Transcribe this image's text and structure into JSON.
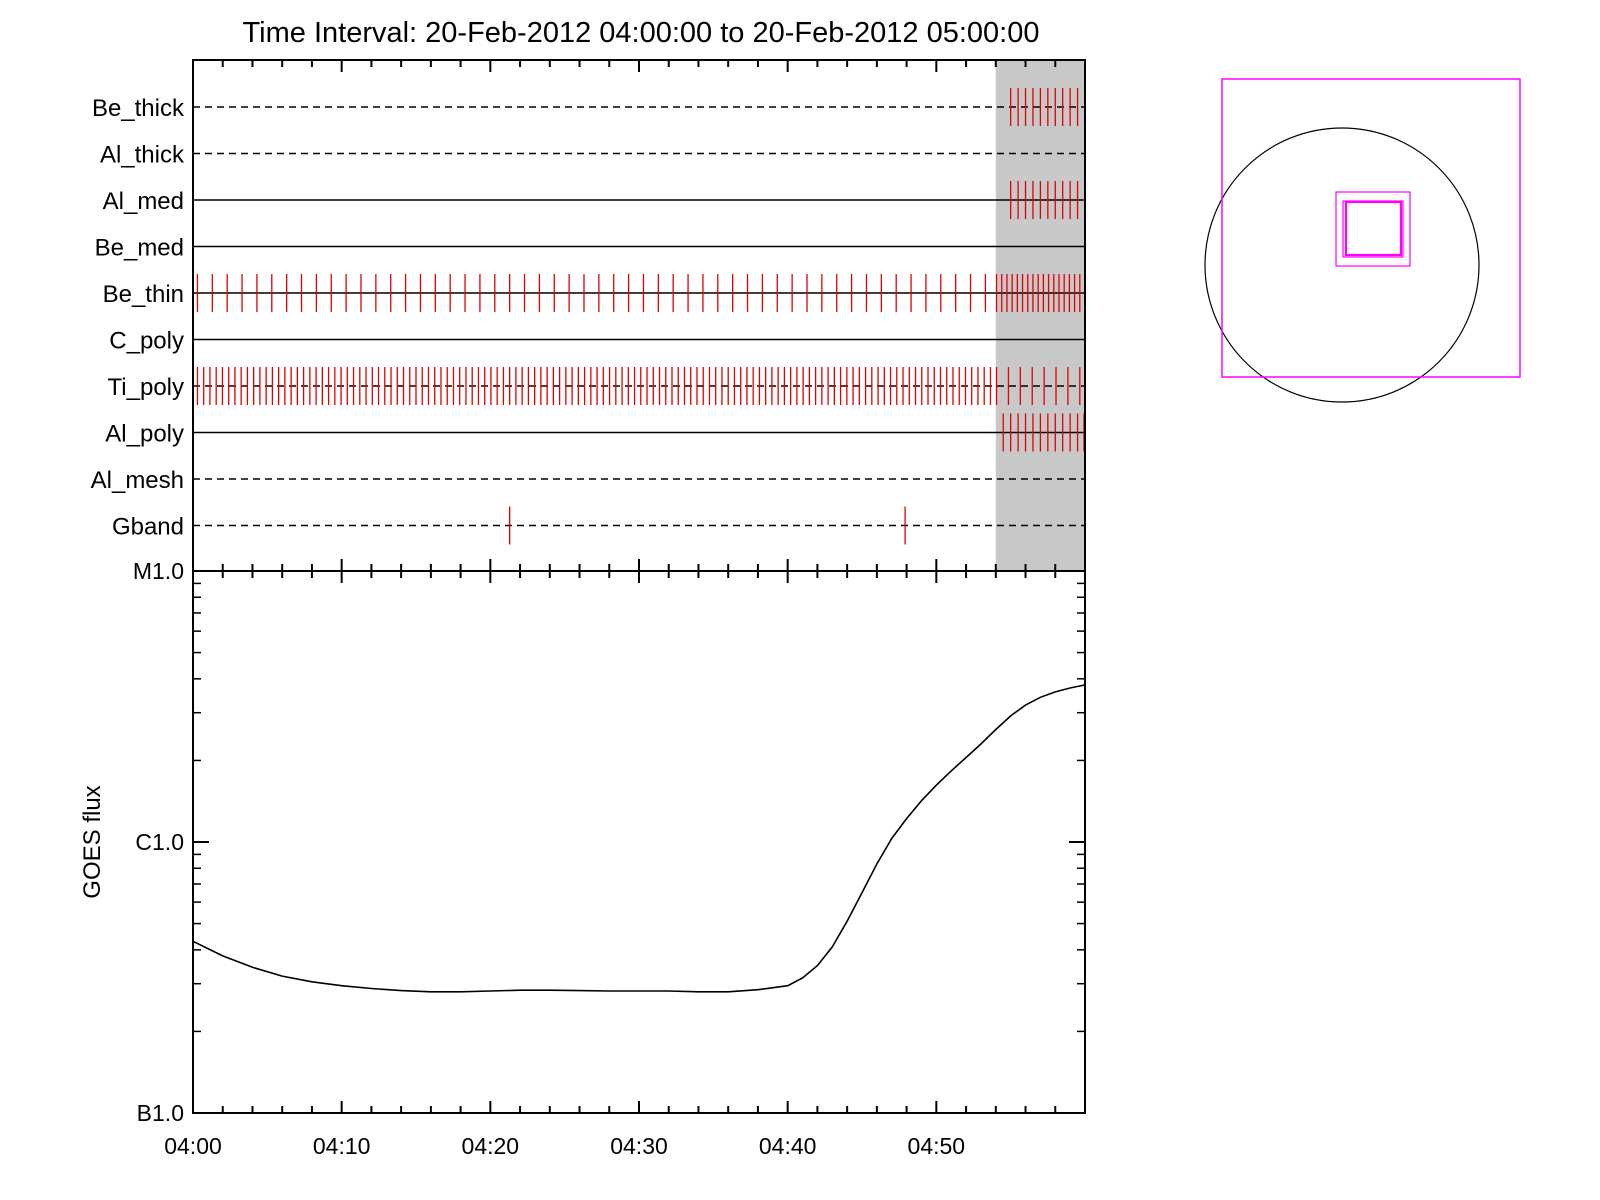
{
  "title": "Time Interval: 20-Feb-2012 04:00:00 to 20-Feb-2012 05:00:00",
  "colors": {
    "event_tick": "#e00000",
    "shade": "#c8c8c8",
    "fov": "#ff00ff",
    "line": "#000000"
  },
  "chart_data": [
    {
      "type": "timeline",
      "x_range": [
        "04:00",
        "05:00"
      ],
      "shaded_interval": [
        "04:54",
        "05:00"
      ],
      "rows": [
        {
          "name": "Be_thick",
          "line": "dashed",
          "ticks": [
            "04:55",
            "04:55.5",
            "04:56",
            "04:56.5",
            "04:57",
            "04:57.5",
            "04:58",
            "04:58.5",
            "04:59",
            "04:59.5"
          ]
        },
        {
          "name": "Al_thick",
          "line": "dashed",
          "ticks": []
        },
        {
          "name": "Al_med",
          "line": "solid",
          "ticks": [
            "04:55",
            "04:55.5",
            "04:56",
            "04:56.5",
            "04:57",
            "04:57.5",
            "04:58",
            "04:58.5",
            "04:59",
            "04:59.5"
          ]
        },
        {
          "name": "Be_med",
          "line": "solid",
          "ticks": []
        },
        {
          "name": "Be_thin",
          "line": "solid",
          "tick_spacing_min": 1.0,
          "tick_spacing_min_shaded": 0.35
        },
        {
          "name": "C_poly",
          "line": "solid",
          "ticks": []
        },
        {
          "name": "Ti_poly",
          "line": "dashed",
          "tick_spacing_min": 0.42,
          "tick_spacing_min_shaded": 0.8
        },
        {
          "name": "Al_poly",
          "line": "solid",
          "ticks": [
            "04:54.5",
            "04:55",
            "04:55.5",
            "04:56",
            "04:56.5",
            "04:57",
            "04:57.5",
            "04:58",
            "04:58.5",
            "04:59",
            "04:59.5",
            "05:00"
          ]
        },
        {
          "name": "Al_mesh",
          "line": "dashed",
          "ticks": []
        },
        {
          "name": "Gband",
          "line": "dashed",
          "ticks": [
            "04:21.3",
            "04:47.9"
          ]
        }
      ]
    },
    {
      "type": "line",
      "ylabel": "GOES flux",
      "yscale": "log",
      "ylim": [
        1e-07,
        1e-05
      ],
      "yticks": [
        {
          "value": 1e-07,
          "label": "B1.0"
        },
        {
          "value": 1e-06,
          "label": "C1.0"
        },
        {
          "value": 1e-05,
          "label": "M1.0"
        }
      ],
      "xticks": [
        "04:00",
        "04:10",
        "04:20",
        "04:30",
        "04:40",
        "04:50"
      ],
      "xlim": [
        "04:00",
        "05:00"
      ],
      "series": [
        {
          "x": [
            "04:00",
            "04:02",
            "04:04",
            "04:06",
            "04:08",
            "04:10",
            "04:12",
            "04:14",
            "04:16",
            "04:18",
            "04:20",
            "04:22",
            "04:24",
            "04:26",
            "04:28",
            "04:30",
            "04:32",
            "04:34",
            "04:36",
            "04:38",
            "04:40",
            "04:41",
            "04:42",
            "04:43",
            "04:44",
            "04:45",
            "04:46",
            "04:47",
            "04:48",
            "04:49",
            "04:50",
            "04:51",
            "04:52",
            "04:53",
            "04:54",
            "04:55",
            "04:56",
            "04:57",
            "04:58",
            "04:59",
            "05:00"
          ],
          "y": [
            4.3e-07,
            3.8e-07,
            3.45e-07,
            3.2e-07,
            3.05e-07,
            2.95e-07,
            2.88e-07,
            2.83e-07,
            2.8e-07,
            2.8e-07,
            2.82e-07,
            2.84e-07,
            2.84e-07,
            2.83e-07,
            2.82e-07,
            2.82e-07,
            2.82e-07,
            2.8e-07,
            2.8e-07,
            2.85e-07,
            2.95e-07,
            3.15e-07,
            3.5e-07,
            4.1e-07,
            5.1e-07,
            6.5e-07,
            8.3e-07,
            1.03e-06,
            1.22e-06,
            1.42e-06,
            1.62e-06,
            1.83e-06,
            2.05e-06,
            2.3e-06,
            2.6e-06,
            2.92e-06,
            3.2e-06,
            3.42e-06,
            3.58e-06,
            3.7e-06,
            3.8e-06
          ]
        }
      ]
    },
    {
      "type": "diagram",
      "shapes": [
        "solar-disk-circle",
        "outer-fov-square",
        "inner-fov-squares"
      ]
    }
  ]
}
